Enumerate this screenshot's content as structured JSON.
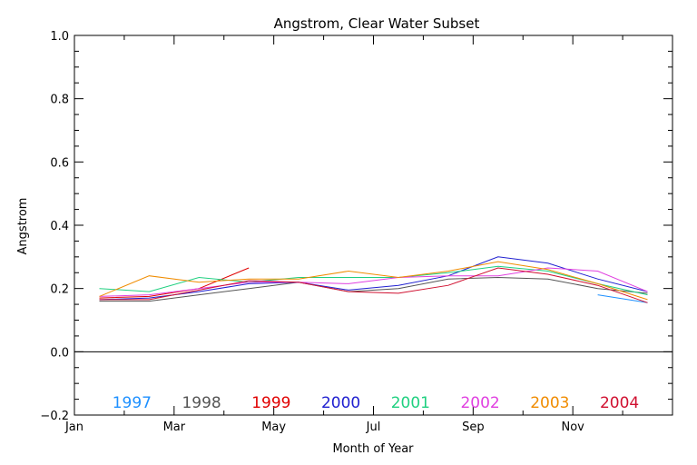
{
  "chart_data": {
    "type": "line",
    "title": "Angstrom, Clear Water Subset",
    "xlabel": "Month of Year",
    "ylabel": "Angstrom",
    "xlim": [
      1,
      13
    ],
    "ylim": [
      -0.2,
      1.0
    ],
    "x_tick_labels": [
      {
        "x": 1,
        "label": "Jan"
      },
      {
        "x": 3,
        "label": "Mar"
      },
      {
        "x": 5,
        "label": "May"
      },
      {
        "x": 7,
        "label": "Jul"
      },
      {
        "x": 9,
        "label": "Sep"
      },
      {
        "x": 11,
        "label": "Nov"
      }
    ],
    "y_tick_labels": [
      {
        "y": -0.2,
        "label": "−0.2"
      },
      {
        "y": 0.0,
        "label": "0.0"
      },
      {
        "y": 0.2,
        "label": "0.2"
      },
      {
        "y": 0.4,
        "label": "0.4"
      },
      {
        "y": 0.6,
        "label": "0.6"
      },
      {
        "y": 0.8,
        "label": "0.8"
      },
      {
        "y": 1.0,
        "label": "1.0"
      }
    ],
    "reference_line_y": 0.0,
    "legend_placement": "bottom",
    "series": [
      {
        "name": "1997",
        "color": "#1e90ff",
        "x": [
          11.5,
          12.5
        ],
        "y": [
          0.18,
          0.155
        ]
      },
      {
        "name": "1998",
        "color": "#555555",
        "x": [
          1.5,
          2.5,
          3.5,
          4.5,
          5.5,
          6.5,
          7.5,
          8.5,
          9.5,
          10.5,
          11.5,
          12.5
        ],
        "y": [
          0.16,
          0.16,
          0.18,
          0.2,
          0.22,
          0.19,
          0.2,
          0.23,
          0.235,
          0.23,
          0.2,
          0.185
        ]
      },
      {
        "name": "1999",
        "color": "#e00000",
        "x": [
          1.5,
          2.5,
          3.5,
          4.5
        ],
        "y": [
          0.17,
          0.175,
          0.2,
          0.265
        ]
      },
      {
        "name": "2000",
        "color": "#2020d0",
        "x": [
          1.5,
          2.5,
          3.5,
          4.5,
          5.5,
          6.5,
          7.5,
          8.5,
          9.5,
          10.5,
          11.5,
          12.5
        ],
        "y": [
          0.165,
          0.17,
          0.19,
          0.215,
          0.22,
          0.195,
          0.21,
          0.24,
          0.3,
          0.28,
          0.23,
          0.19
        ]
      },
      {
        "name": "2001",
        "color": "#20d080",
        "x": [
          1.5,
          2.5,
          3.5,
          4.5,
          5.5,
          6.5,
          7.5,
          8.5,
          9.5,
          10.5,
          11.5,
          12.5
        ],
        "y": [
          0.2,
          0.19,
          0.235,
          0.22,
          0.235,
          0.235,
          0.235,
          0.25,
          0.27,
          0.255,
          0.215,
          0.18
        ]
      },
      {
        "name": "2002",
        "color": "#e040e0",
        "x": [
          1.5,
          2.5,
          3.5,
          4.5,
          5.5,
          6.5,
          7.5,
          8.5,
          9.5,
          10.5,
          11.5,
          12.5
        ],
        "y": [
          0.175,
          0.18,
          0.2,
          0.22,
          0.22,
          0.215,
          0.235,
          0.24,
          0.24,
          0.265,
          0.255,
          0.19
        ]
      },
      {
        "name": "2003",
        "color": "#f08c00",
        "x": [
          1.5,
          2.5,
          3.5,
          4.5,
          5.5,
          6.5,
          7.5,
          8.5,
          9.5,
          10.5,
          11.5,
          12.5
        ],
        "y": [
          0.175,
          0.24,
          0.22,
          0.23,
          0.23,
          0.255,
          0.235,
          0.255,
          0.285,
          0.26,
          0.215,
          0.165
        ]
      },
      {
        "name": "2004",
        "color": "#d01030",
        "x": [
          1.5,
          2.5,
          3.5,
          4.5,
          5.5,
          6.5,
          7.5,
          8.5,
          9.5,
          10.5,
          11.5,
          12.5
        ],
        "y": [
          0.165,
          0.165,
          0.195,
          0.225,
          0.22,
          0.19,
          0.185,
          0.21,
          0.265,
          0.245,
          0.21,
          0.155
        ]
      }
    ]
  }
}
